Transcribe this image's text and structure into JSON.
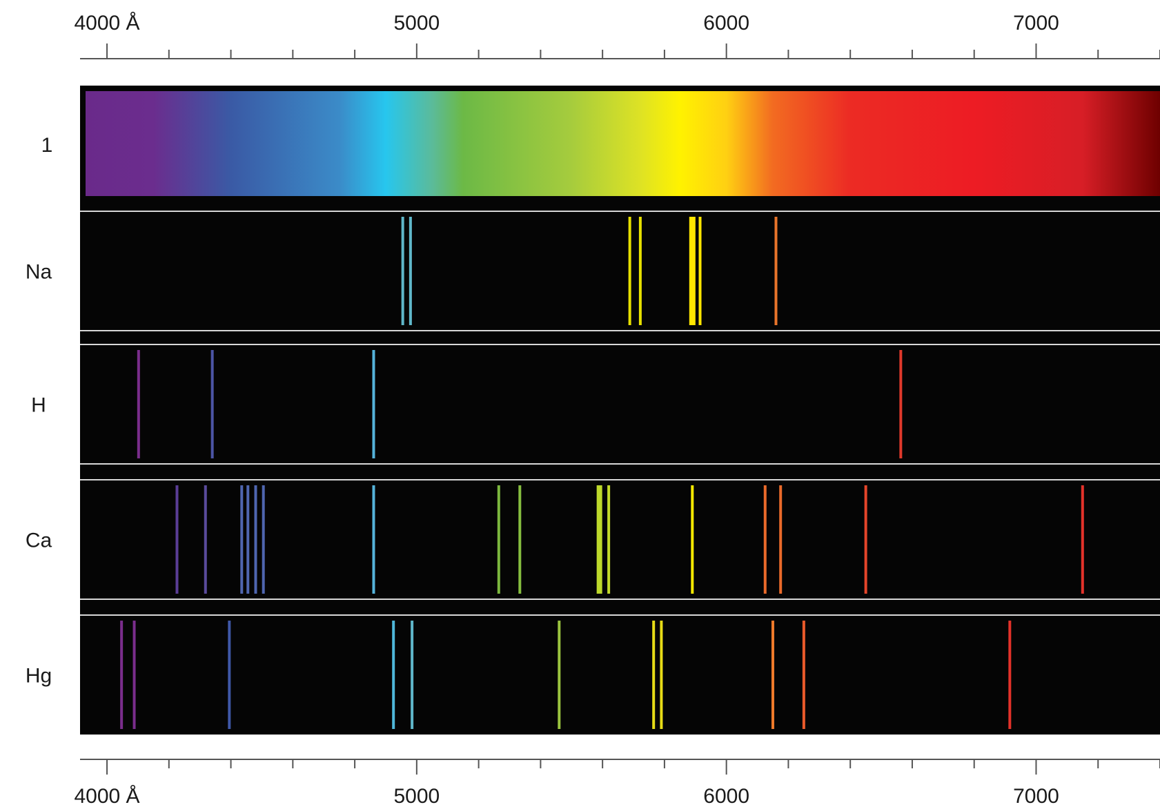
{
  "axis": {
    "min": 3913,
    "max": 7400,
    "labels": [
      {
        "value": 4000,
        "text": "4000 Å"
      },
      {
        "value": 5000,
        "text": "5000"
      },
      {
        "value": 6000,
        "text": "6000"
      },
      {
        "value": 7000,
        "text": "7000"
      }
    ],
    "major_ticks": [
      4000,
      5000,
      6000,
      7000
    ],
    "minor_ticks": [
      4200,
      4400,
      4600,
      4800,
      5200,
      5400,
      5600,
      5800,
      6200,
      6400,
      6600,
      6800,
      7200,
      7400
    ]
  },
  "continuous": {
    "label": "1",
    "gradient": [
      {
        "value": 3913,
        "color": "#6a2a8a"
      },
      {
        "value": 4150,
        "color": "#6b2d8e"
      },
      {
        "value": 4400,
        "color": "#3a5aa5"
      },
      {
        "value": 4750,
        "color": "#3b8bc8"
      },
      {
        "value": 4900,
        "color": "#27c6ee"
      },
      {
        "value": 5050,
        "color": "#5bbb9a"
      },
      {
        "value": 5150,
        "color": "#6cb946"
      },
      {
        "value": 5500,
        "color": "#a6cc3d"
      },
      {
        "value": 5720,
        "color": "#dde225"
      },
      {
        "value": 5850,
        "color": "#fff200"
      },
      {
        "value": 6000,
        "color": "#ffd012"
      },
      {
        "value": 6150,
        "color": "#f26b21"
      },
      {
        "value": 6400,
        "color": "#ec2b24"
      },
      {
        "value": 6800,
        "color": "#ed1c24"
      },
      {
        "value": 7150,
        "color": "#d71e26"
      },
      {
        "value": 7400,
        "color": "#6e0000"
      }
    ]
  },
  "elements": [
    {
      "label": "Na",
      "lines": [
        {
          "value": 4955,
          "color": "#5fb7c9"
        },
        {
          "value": 4980,
          "color": "#5fb7c9"
        },
        {
          "value": 5688,
          "color": "#e7e000"
        },
        {
          "value": 5722,
          "color": "#e7e000"
        },
        {
          "value": 5890,
          "color": "#ffe600",
          "width": 9
        },
        {
          "value": 5915,
          "color": "#ffe600"
        },
        {
          "value": 6160,
          "color": "#e8742a"
        }
      ]
    },
    {
      "label": "H",
      "lines": [
        {
          "value": 4102,
          "color": "#7a2d8c"
        },
        {
          "value": 4340,
          "color": "#4c55a6"
        },
        {
          "value": 4861,
          "color": "#55b3da"
        },
        {
          "value": 6563,
          "color": "#e0392b"
        }
      ]
    },
    {
      "label": "Ca",
      "lines": [
        {
          "value": 4226,
          "color": "#5a3d96"
        },
        {
          "value": 4318,
          "color": "#5a4b9c"
        },
        {
          "value": 4435,
          "color": "#4f66b0"
        },
        {
          "value": 4455,
          "color": "#4f66b0"
        },
        {
          "value": 4480,
          "color": "#4f66b0"
        },
        {
          "value": 4505,
          "color": "#4f66b0"
        },
        {
          "value": 4861,
          "color": "#55b3da"
        },
        {
          "value": 5265,
          "color": "#7cb83e"
        },
        {
          "value": 5333,
          "color": "#86be3f"
        },
        {
          "value": 5590,
          "color": "#bdd82b",
          "width": 8
        },
        {
          "value": 5620,
          "color": "#c3da2a"
        },
        {
          "value": 5890,
          "color": "#f6e900"
        },
        {
          "value": 6125,
          "color": "#ea6a2a"
        },
        {
          "value": 6175,
          "color": "#ea6a2a"
        },
        {
          "value": 6450,
          "color": "#e5452a"
        },
        {
          "value": 7150,
          "color": "#e3322a"
        }
      ]
    },
    {
      "label": "Hg",
      "lines": [
        {
          "value": 4047,
          "color": "#7a2d8c"
        },
        {
          "value": 4088,
          "color": "#7a2d8c"
        },
        {
          "value": 4395,
          "color": "#3f58a8"
        },
        {
          "value": 4925,
          "color": "#4fb7d9"
        },
        {
          "value": 4985,
          "color": "#5fb7c9"
        },
        {
          "value": 5460,
          "color": "#9bc43f"
        },
        {
          "value": 5765,
          "color": "#e7dc16"
        },
        {
          "value": 5790,
          "color": "#e7dc16"
        },
        {
          "value": 6150,
          "color": "#ef7a2a"
        },
        {
          "value": 6250,
          "color": "#ea5a2a"
        },
        {
          "value": 6915,
          "color": "#e3322a"
        }
      ]
    }
  ]
}
